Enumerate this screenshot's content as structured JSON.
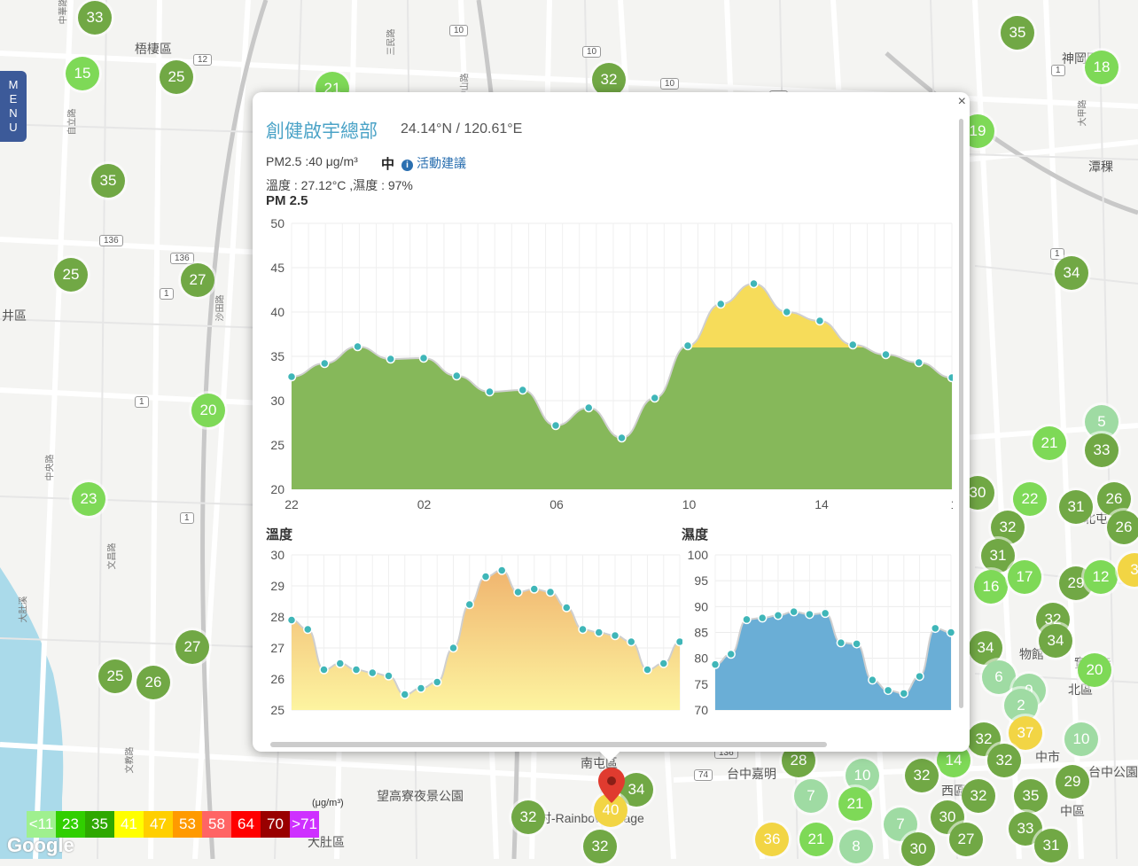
{
  "colors": {
    "good_dark": "#71a845",
    "good_light": "#7ed957",
    "moderate": "#f2d544",
    "map_bg": "#f4f4f2",
    "pm_fill": "#86b85a",
    "pm_fill_above": "#f6dc5a",
    "temp_fill": "#f2c072",
    "humid_fill": "#6aaed6",
    "point": "#3fb6b8",
    "title": "#4ba3c7"
  },
  "menu": {
    "label": "MENU"
  },
  "map": {
    "places": [
      {
        "text": "梧棲區"
      },
      {
        "text": "井區"
      },
      {
        "text": "神岡區"
      },
      {
        "text": "潭稞"
      },
      {
        "text": "大肚區"
      },
      {
        "text": "南屯區"
      },
      {
        "text": "望高寮夜景公園"
      },
      {
        "text": "彩虹村-Rainbow Village"
      },
      {
        "text": "台中嘉明"
      },
      {
        "text": "西區"
      },
      {
        "text": "中市"
      },
      {
        "text": "北區"
      },
      {
        "text": "中區"
      },
      {
        "text": "實覺寺"
      },
      {
        "text": "物館"
      },
      {
        "text": "台中公園"
      },
      {
        "text": "北屯"
      }
    ],
    "roads": [
      {
        "text": "中華路"
      },
      {
        "text": "中央路"
      },
      {
        "text": "文昌路"
      },
      {
        "text": "沙田路"
      },
      {
        "text": "自立路"
      },
      {
        "text": "文教路"
      },
      {
        "text": "大肚溪"
      },
      {
        "text": "中山路"
      },
      {
        "text": "三民路"
      },
      {
        "text": "大甲路"
      }
    ],
    "shields": [
      {
        "text": "136"
      },
      {
        "text": "136"
      },
      {
        "text": "12"
      },
      {
        "text": "10"
      },
      {
        "text": "10"
      },
      {
        "text": "10"
      },
      {
        "text": "10"
      },
      {
        "text": "1"
      },
      {
        "text": "1"
      },
      {
        "text": "1"
      },
      {
        "text": "136"
      },
      {
        "text": "74"
      },
      {
        "text": "1"
      },
      {
        "text": "1"
      }
    ],
    "markers": [
      {
        "v": "33",
        "c": "#71a845"
      },
      {
        "v": "15",
        "c": "#7ed957"
      },
      {
        "v": "25",
        "c": "#71a845"
      },
      {
        "v": "35",
        "c": "#71a845"
      },
      {
        "v": "25",
        "c": "#71a845"
      },
      {
        "v": "27",
        "c": "#71a845"
      },
      {
        "v": "20",
        "c": "#7ed957"
      },
      {
        "v": "23",
        "c": "#7ed957"
      },
      {
        "v": "27",
        "c": "#71a845"
      },
      {
        "v": "25",
        "c": "#71a845"
      },
      {
        "v": "26",
        "c": "#71a845"
      },
      {
        "v": "21",
        "c": "#7ed957"
      },
      {
        "v": "32",
        "c": "#71a845"
      },
      {
        "v": "35",
        "c": "#71a845"
      },
      {
        "v": "18",
        "c": "#7ed957"
      },
      {
        "v": "19",
        "c": "#7ed957"
      },
      {
        "v": "34",
        "c": "#71a845"
      },
      {
        "v": "5",
        "c": "#9fdba3"
      },
      {
        "v": "21",
        "c": "#7ed957"
      },
      {
        "v": "33",
        "c": "#71a845"
      },
      {
        "v": "30",
        "c": "#71a845"
      },
      {
        "v": "22",
        "c": "#7ed957"
      },
      {
        "v": "31",
        "c": "#71a845"
      },
      {
        "v": "26",
        "c": "#71a845"
      },
      {
        "v": "32",
        "c": "#71a845"
      },
      {
        "v": "26",
        "c": "#71a845"
      },
      {
        "v": "31",
        "c": "#71a845"
      },
      {
        "v": "16",
        "c": "#7ed957"
      },
      {
        "v": "17",
        "c": "#7ed957"
      },
      {
        "v": "29",
        "c": "#71a845"
      },
      {
        "v": "12",
        "c": "#7ed957"
      },
      {
        "v": "3",
        "c": "#f2d544"
      },
      {
        "v": "34",
        "c": "#71a845"
      },
      {
        "v": "32",
        "c": "#71a845"
      },
      {
        "v": "34",
        "c": "#71a845"
      },
      {
        "v": "20",
        "c": "#7ed957"
      },
      {
        "v": "6",
        "c": "#9fdba3"
      },
      {
        "v": "9",
        "c": "#9fdba3"
      },
      {
        "v": "2",
        "c": "#9fdba3"
      },
      {
        "v": "37",
        "c": "#f2d544"
      },
      {
        "v": "10",
        "c": "#9fdba3"
      },
      {
        "v": "32",
        "c": "#71a845"
      },
      {
        "v": "32",
        "c": "#71a845"
      },
      {
        "v": "14",
        "c": "#7ed957"
      },
      {
        "v": "28",
        "c": "#71a845"
      },
      {
        "v": "10",
        "c": "#9fdba3"
      },
      {
        "v": "32",
        "c": "#71a845"
      },
      {
        "v": "32",
        "c": "#71a845"
      },
      {
        "v": "35",
        "c": "#71a845"
      },
      {
        "v": "29",
        "c": "#71a845"
      },
      {
        "v": "7",
        "c": "#9fdba3"
      },
      {
        "v": "21",
        "c": "#7ed957"
      },
      {
        "v": "7",
        "c": "#9fdba3"
      },
      {
        "v": "30",
        "c": "#71a845"
      },
      {
        "v": "27",
        "c": "#71a845"
      },
      {
        "v": "33",
        "c": "#71a845"
      },
      {
        "v": "31",
        "c": "#71a845"
      },
      {
        "v": "36",
        "c": "#f2d544"
      },
      {
        "v": "21",
        "c": "#7ed957"
      },
      {
        "v": "8",
        "c": "#9fdba3"
      },
      {
        "v": "30",
        "c": "#71a845"
      },
      {
        "v": "34",
        "c": "#71a845"
      },
      {
        "v": "32",
        "c": "#71a845"
      },
      {
        "v": "32",
        "c": "#71a845"
      },
      {
        "v": "40",
        "c": "#f2d544"
      }
    ]
  },
  "popup": {
    "close": "×",
    "station": "創健啟宇總部",
    "coords": "24.14°N / 120.61°E",
    "pm_text": "PM2.5 :40 μg/m³",
    "level": "中",
    "info_icon": "i",
    "advice": "活動建議",
    "weather_text": "溫度 : 27.12°C ,濕度 : 97%",
    "pm_title": "PM 2.5",
    "temp_title": "溫度",
    "humid_title": "濕度"
  },
  "chart_data": [
    {
      "type": "area",
      "title": "PM 2.5",
      "x_ticks": [
        "22",
        "02",
        "06",
        "10",
        "14",
        "1"
      ],
      "ylim": [
        20,
        50
      ],
      "yticks": [
        20,
        25,
        30,
        35,
        40,
        45,
        50
      ],
      "threshold": 36,
      "grid": true,
      "values": [
        32.7,
        34.2,
        36.1,
        34.7,
        34.8,
        32.8,
        31.0,
        31.2,
        27.2,
        29.2,
        25.8,
        30.3,
        36.2,
        40.9,
        43.2,
        40.0,
        39.0,
        36.3,
        35.2,
        34.3,
        32.6
      ]
    },
    {
      "type": "area",
      "title": "溫度",
      "ylim": [
        25,
        30
      ],
      "yticks": [
        25,
        26,
        27,
        28,
        29,
        30
      ],
      "grid": true,
      "values": [
        27.9,
        27.6,
        26.3,
        26.5,
        26.3,
        26.2,
        26.1,
        25.5,
        25.7,
        25.9,
        27.0,
        28.4,
        29.3,
        29.5,
        28.8,
        28.9,
        28.8,
        28.3,
        27.6,
        27.5,
        27.4,
        27.2,
        26.3,
        26.5,
        27.2
      ]
    },
    {
      "type": "area",
      "title": "濕度",
      "ylim": [
        70,
        100
      ],
      "yticks": [
        70,
        75,
        80,
        85,
        90,
        95,
        100
      ],
      "grid": true,
      "values": [
        78.8,
        80.8,
        87.5,
        87.8,
        88.3,
        89.0,
        88.5,
        88.7,
        83.0,
        82.8,
        75.8,
        73.8,
        73.2,
        76.5,
        85.8,
        85.0
      ]
    }
  ],
  "legend": {
    "unit": "(μg/m³)",
    "items": [
      {
        "label": "<11",
        "color": "#9ff08f"
      },
      {
        "label": "23",
        "color": "#31cf00"
      },
      {
        "label": "35",
        "color": "#2ea800"
      },
      {
        "label": "41",
        "color": "#ffff00"
      },
      {
        "label": "47",
        "color": "#ffcf00"
      },
      {
        "label": "53",
        "color": "#ff9a00"
      },
      {
        "label": "58",
        "color": "#ff6464"
      },
      {
        "label": "64",
        "color": "#ff0000"
      },
      {
        "label": "70",
        "color": "#990000"
      },
      {
        "label": ">71",
        "color": "#ce30ff"
      }
    ]
  },
  "google": "Google"
}
